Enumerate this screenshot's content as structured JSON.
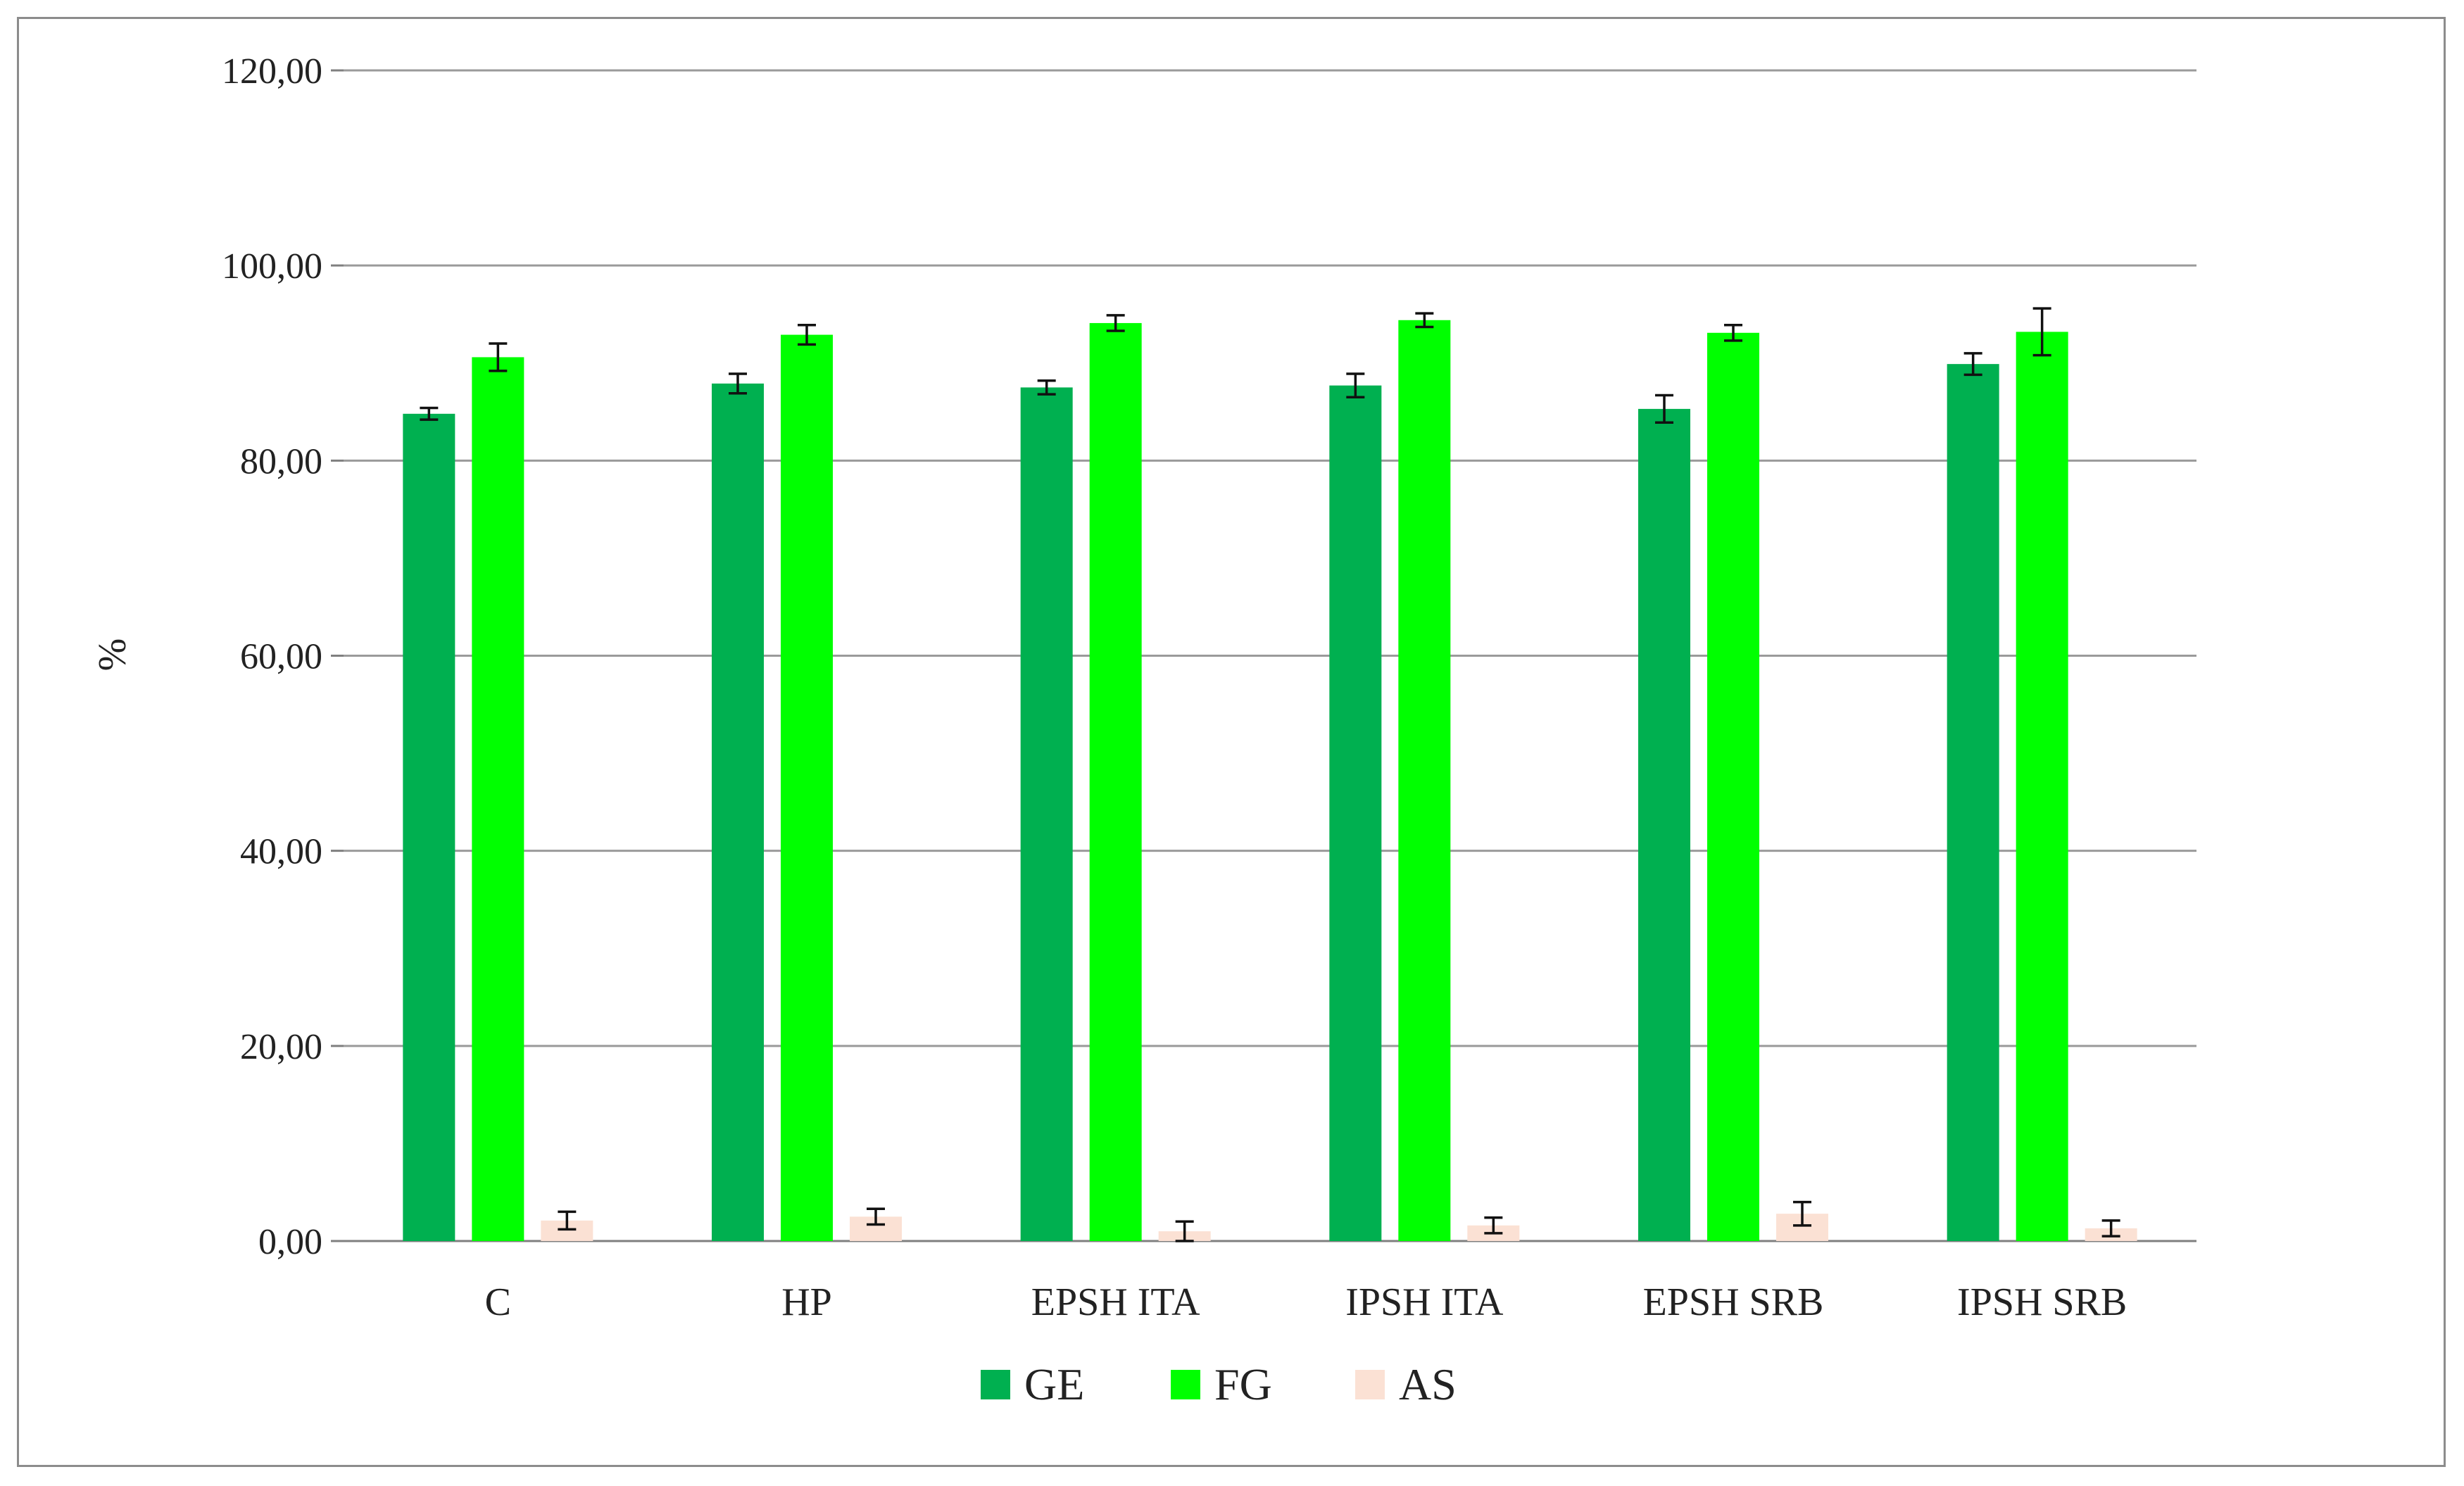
{
  "chart_data": {
    "type": "bar",
    "title": "",
    "xlabel": "",
    "ylabel": "%",
    "ylim": [
      0,
      120
    ],
    "yticks": [
      "0,00",
      "20,00",
      "40,00",
      "60,00",
      "80,00",
      "100,00",
      "120,00"
    ],
    "ytick_values": [
      0,
      20,
      40,
      60,
      80,
      100,
      120
    ],
    "grid": true,
    "legend_position": "bottom",
    "categories": [
      "C",
      "HP",
      "EPSH ITA",
      "IPSH ITA",
      "EPSH SRB",
      "IPSH SRB"
    ],
    "series": [
      {
        "name": "GE",
        "color": "#00B050",
        "values": [
          84.8,
          87.9,
          87.5,
          87.7,
          85.3,
          89.9
        ],
        "errors": [
          0.6,
          1.0,
          0.7,
          1.2,
          1.4,
          1.1
        ]
      },
      {
        "name": "FG",
        "color": "#00FF00",
        "values": [
          90.6,
          92.9,
          94.1,
          94.4,
          93.1,
          93.2
        ],
        "errors": [
          1.4,
          1.0,
          0.8,
          0.7,
          0.8,
          2.4
        ]
      },
      {
        "name": "AS",
        "color": "#FBE1D4",
        "values": [
          2.1,
          2.5,
          1.0,
          1.6,
          2.8,
          1.3
        ],
        "errors": [
          0.9,
          0.8,
          1.0,
          0.8,
          1.2,
          0.8
        ]
      }
    ]
  }
}
